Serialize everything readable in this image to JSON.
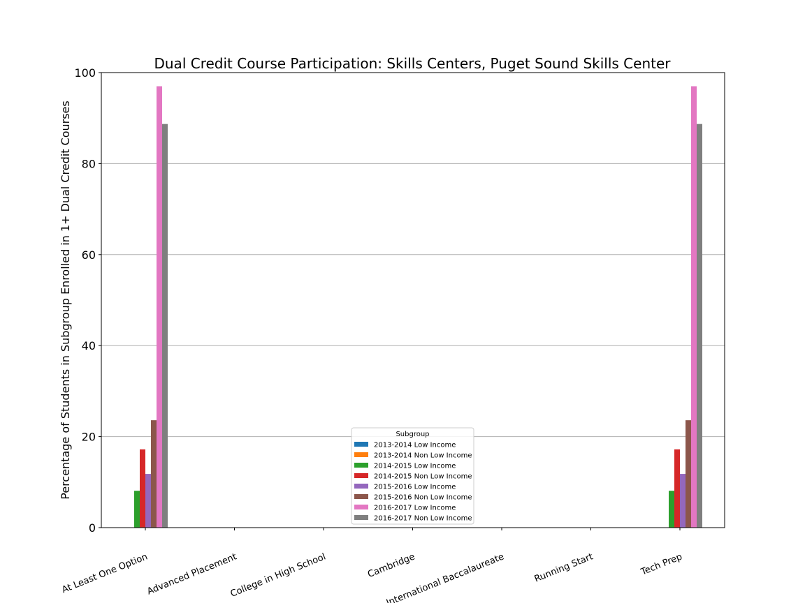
{
  "chart_data": {
    "type": "bar",
    "title": "Dual Credit Course Participation: Skills Centers, Puget Sound Skills Center",
    "xlabel": "",
    "ylabel": "Percentage of Students in Subgroup Enrolled in 1+ Dual Credit Courses",
    "ylim": [
      0,
      100
    ],
    "yticks": [
      0,
      20,
      40,
      60,
      80,
      100
    ],
    "grid": "horizontal",
    "categories": [
      "At Least One Option",
      "Advanced Placement",
      "College in High School",
      "Cambridge",
      "International Baccalaureate",
      "Running Start",
      "Tech Prep"
    ],
    "legend": {
      "title": "Subgroup",
      "placement": "lower center"
    },
    "series": [
      {
        "name": "2013-2014 Low Income",
        "color": "#1f77b4",
        "values": [
          0,
          0,
          0,
          0,
          0,
          0,
          0
        ]
      },
      {
        "name": "2013-2014 Non Low Income",
        "color": "#ff7f0e",
        "values": [
          0,
          0,
          0,
          0,
          0,
          0,
          0
        ]
      },
      {
        "name": "2014-2015 Low Income",
        "color": "#2ca02c",
        "values": [
          8.1,
          0,
          0,
          0,
          0,
          0,
          8.1
        ]
      },
      {
        "name": "2014-2015 Non Low Income",
        "color": "#d62728",
        "values": [
          17.2,
          0,
          0,
          0,
          0,
          0,
          17.2
        ]
      },
      {
        "name": "2015-2016 Low Income",
        "color": "#9467bd",
        "values": [
          11.8,
          0,
          0,
          0,
          0,
          0,
          11.8
        ]
      },
      {
        "name": "2015-2016 Non Low Income",
        "color": "#8c564b",
        "values": [
          23.6,
          0,
          0,
          0,
          0,
          0,
          23.6
        ]
      },
      {
        "name": "2016-2017 Low Income",
        "color": "#e377c2",
        "values": [
          97.0,
          0,
          0,
          0,
          0,
          0,
          97.0
        ]
      },
      {
        "name": "2016-2017 Non Low Income",
        "color": "#7f7f7f",
        "values": [
          88.7,
          0,
          0,
          0,
          0,
          0,
          88.7
        ]
      }
    ]
  }
}
